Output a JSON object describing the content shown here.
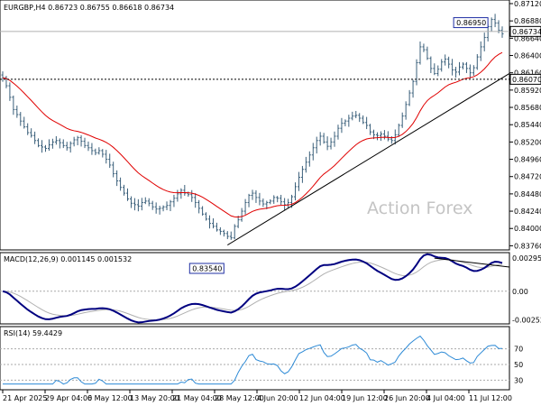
{
  "chart_data": [
    {
      "type": "candlestick",
      "symbol_header": "EURGBP,H4  0.86723 0.86755 0.86618 0.86734",
      "watermark": "Action Forex",
      "ylim": [
        0.8374,
        0.8712
      ],
      "y_ticks": [
        "0.87120",
        "0.86880",
        "0.86640",
        "0.86400",
        "0.86160",
        "0.85920",
        "0.85680",
        "0.85440",
        "0.85200",
        "0.84960",
        "0.84720",
        "0.84480",
        "0.84240",
        "0.84000",
        "0.83760"
      ],
      "x_ticks": [
        "21 Apr 2025",
        "29 Apr 04:00",
        "6 May 12:00",
        "13 May 20:00",
        "21 May 04:00",
        "28 May 12:00",
        "4 Jun 20:00",
        "12 Jun 04:00",
        "19 Jun 12:00",
        "26 Jun 20:00",
        "4 Jul 04:00",
        "11 Jul 12:00"
      ],
      "current_price": "0.86734",
      "reference_level": "0.86070",
      "annotations": {
        "high": "0.86950",
        "low": "0.83540"
      },
      "close_series": [
        0.8609,
        0.8598,
        0.8582,
        0.8565,
        0.8558,
        0.8549,
        0.8541,
        0.8533,
        0.8529,
        0.8522,
        0.8515,
        0.8513,
        0.8511,
        0.8516,
        0.852,
        0.8522,
        0.8519,
        0.8515,
        0.8512,
        0.8518,
        0.8523,
        0.8526,
        0.8521,
        0.8515,
        0.8512,
        0.8508,
        0.8505,
        0.8508,
        0.8503,
        0.8496,
        0.8488,
        0.8476,
        0.8466,
        0.8457,
        0.8449,
        0.8441,
        0.8435,
        0.8433,
        0.8431,
        0.8436,
        0.8438,
        0.8435,
        0.843,
        0.8427,
        0.8428,
        0.843,
        0.8432,
        0.8437,
        0.8442,
        0.8448,
        0.8453,
        0.8449,
        0.8447,
        0.8443,
        0.8436,
        0.8428,
        0.842,
        0.8413,
        0.8407,
        0.8403,
        0.8398,
        0.8396,
        0.8393,
        0.8389,
        0.8387,
        0.8403,
        0.8412,
        0.8424,
        0.8436,
        0.8446,
        0.8449,
        0.8443,
        0.8438,
        0.8434,
        0.8436,
        0.8438,
        0.8443,
        0.8442,
        0.8437,
        0.8433,
        0.8436,
        0.8444,
        0.8458,
        0.8471,
        0.8482,
        0.8492,
        0.8502,
        0.8512,
        0.8522,
        0.8528,
        0.852,
        0.8514,
        0.852,
        0.8528,
        0.8539,
        0.8546,
        0.8549,
        0.8553,
        0.8556,
        0.8557,
        0.8553,
        0.8547,
        0.8543,
        0.8534,
        0.853,
        0.8529,
        0.8531,
        0.8528,
        0.8524,
        0.8522,
        0.853,
        0.8543,
        0.8556,
        0.8572,
        0.8588,
        0.8604,
        0.863,
        0.8652,
        0.8648,
        0.8636,
        0.8622,
        0.8615,
        0.8621,
        0.8631,
        0.8635,
        0.8628,
        0.862,
        0.8617,
        0.8624,
        0.8628,
        0.8622,
        0.8616,
        0.8623,
        0.8638,
        0.8652,
        0.8665,
        0.868,
        0.869,
        0.8685,
        0.8675,
        0.867
      ],
      "moving_average": {
        "color": "#e00000"
      },
      "trend_line": {
        "from": {
          "index": 63,
          "value": 0.8377
        },
        "to": {
          "index": 143,
          "value": 0.8618
        }
      }
    },
    {
      "type": "line",
      "title": "MACD(12,26,9) 0.001145 0.001532",
      "ylim": [
        -0.00275,
        0.0032
      ],
      "y_ticks": [
        "0.00295",
        "0.00",
        "-0.002529"
      ],
      "series": [
        {
          "role": "main",
          "color": "#000080"
        },
        {
          "role": "signal",
          "color": "#b0b0b0"
        }
      ],
      "trend_line": {
        "from": {
          "index": 121,
          "value": 0.00295
        },
        "to": {
          "index": 142,
          "value": 0.00215
        }
      }
    },
    {
      "type": "line",
      "title": "RSI(14) 59.4429",
      "ylim": [
        20,
        95
      ],
      "y_ticks": [
        "70",
        "50",
        "30"
      ],
      "levels": [
        70,
        50,
        30
      ],
      "series": [
        {
          "color": "#2d8ad6"
        }
      ]
    }
  ]
}
